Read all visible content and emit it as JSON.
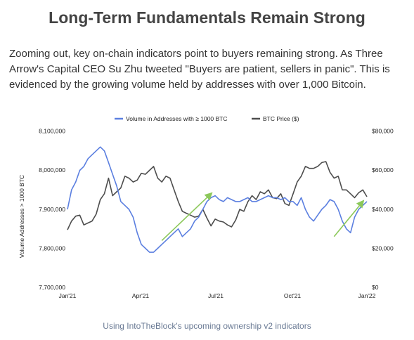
{
  "title": "Long-Term Fundamentals Remain Strong",
  "intro": "Zooming out, key on-chain indicators point to buyers remaining strong. As Three Arrow's Capital CEO Su Zhu tweeted \"Buyers are patient, sellers in panic\". This is evidenced by the growing volume held by addresses with over 1,000 Bitcoin.",
  "caption": "Using IntoTheBlock's upcoming ownership v2 indicators",
  "colors": {
    "volume": "#5b7fe0",
    "price": "#4d4d4d",
    "arrow": "#8cc85a"
  },
  "chart_data": {
    "type": "line",
    "ylabel": "Volume Addresses > 1000 BTC",
    "legend_position": "top-center",
    "x_ticks": [
      "Jan'21",
      "Apr'21",
      "Jul'21",
      "Oct'21",
      "Jan'22"
    ],
    "y_left_ticks": [
      "8,100,000",
      "8,000,000",
      "7,900,000",
      "7,800,000",
      "7,700,000"
    ],
    "y_right_ticks": [
      "$80,000",
      "$60,000",
      "$40,000",
      "$20,000",
      "$0"
    ],
    "ylim_left": [
      7700000,
      8100000
    ],
    "ylim_right": [
      0,
      80000
    ],
    "x_range": [
      "2021-01-01",
      "2022-01-01"
    ],
    "series": [
      {
        "name": "Volume in Addresses with ≥ 1000 BTC",
        "axis": "left",
        "x": [
          "2021-01-01",
          "2021-01-06",
          "2021-01-11",
          "2021-01-16",
          "2021-01-21",
          "2021-01-26",
          "2021-01-31",
          "2021-02-05",
          "2021-02-10",
          "2021-02-15",
          "2021-02-20",
          "2021-02-25",
          "2021-03-02",
          "2021-03-07",
          "2021-03-12",
          "2021-03-17",
          "2021-03-22",
          "2021-03-27",
          "2021-04-01",
          "2021-04-06",
          "2021-04-11",
          "2021-04-16",
          "2021-04-21",
          "2021-04-26",
          "2021-05-01",
          "2021-05-06",
          "2021-05-11",
          "2021-05-16",
          "2021-05-21",
          "2021-05-26",
          "2021-05-31",
          "2021-06-05",
          "2021-06-10",
          "2021-06-15",
          "2021-06-20",
          "2021-06-25",
          "2021-06-30",
          "2021-07-05",
          "2021-07-10",
          "2021-07-15",
          "2021-07-20",
          "2021-07-25",
          "2021-07-30",
          "2021-08-04",
          "2021-08-09",
          "2021-08-14",
          "2021-08-19",
          "2021-08-24",
          "2021-08-29",
          "2021-09-03",
          "2021-09-08",
          "2021-09-13",
          "2021-09-18",
          "2021-09-23",
          "2021-09-28",
          "2021-10-03",
          "2021-10-08",
          "2021-10-13",
          "2021-10-18",
          "2021-10-23",
          "2021-10-28",
          "2021-11-02",
          "2021-11-07",
          "2021-11-12",
          "2021-11-17",
          "2021-11-22",
          "2021-11-27",
          "2021-12-02",
          "2021-12-07",
          "2021-12-12",
          "2021-12-17",
          "2021-12-22",
          "2021-12-27",
          "2022-01-01"
        ],
        "values": [
          7900000,
          7950000,
          7970000,
          8000000,
          8010000,
          8030000,
          8040000,
          8050000,
          8060000,
          8050000,
          8020000,
          7990000,
          7960000,
          7920000,
          7910000,
          7900000,
          7880000,
          7840000,
          7810000,
          7800000,
          7790000,
          7790000,
          7800000,
          7810000,
          7820000,
          7830000,
          7840000,
          7850000,
          7830000,
          7840000,
          7850000,
          7870000,
          7880000,
          7900000,
          7920000,
          7930000,
          7935000,
          7925000,
          7920000,
          7930000,
          7925000,
          7920000,
          7920000,
          7925000,
          7930000,
          7920000,
          7920000,
          7925000,
          7930000,
          7935000,
          7930000,
          7930000,
          7925000,
          7930000,
          7920000,
          7920000,
          7910000,
          7930000,
          7900000,
          7880000,
          7870000,
          7885000,
          7900000,
          7910000,
          7925000,
          7920000,
          7900000,
          7870000,
          7850000,
          7840000,
          7880000,
          7900000,
          7910000,
          7920000
        ]
      },
      {
        "name": "BTC Price ($)",
        "axis": "right",
        "x": [
          "2021-01-01",
          "2021-01-06",
          "2021-01-11",
          "2021-01-16",
          "2021-01-21",
          "2021-01-26",
          "2021-01-31",
          "2021-02-05",
          "2021-02-10",
          "2021-02-15",
          "2021-02-20",
          "2021-02-25",
          "2021-03-02",
          "2021-03-07",
          "2021-03-12",
          "2021-03-17",
          "2021-03-22",
          "2021-03-27",
          "2021-04-01",
          "2021-04-06",
          "2021-04-11",
          "2021-04-16",
          "2021-04-21",
          "2021-04-26",
          "2021-05-01",
          "2021-05-06",
          "2021-05-11",
          "2021-05-16",
          "2021-05-21",
          "2021-05-26",
          "2021-05-31",
          "2021-06-05",
          "2021-06-10",
          "2021-06-15",
          "2021-06-20",
          "2021-06-25",
          "2021-06-30",
          "2021-07-05",
          "2021-07-10",
          "2021-07-15",
          "2021-07-20",
          "2021-07-25",
          "2021-07-30",
          "2021-08-04",
          "2021-08-09",
          "2021-08-14",
          "2021-08-19",
          "2021-08-24",
          "2021-08-29",
          "2021-09-03",
          "2021-09-08",
          "2021-09-13",
          "2021-09-18",
          "2021-09-23",
          "2021-09-28",
          "2021-10-03",
          "2021-10-08",
          "2021-10-13",
          "2021-10-18",
          "2021-10-23",
          "2021-10-28",
          "2021-11-02",
          "2021-11-07",
          "2021-11-12",
          "2021-11-17",
          "2021-11-22",
          "2021-11-27",
          "2021-12-02",
          "2021-12-07",
          "2021-12-12",
          "2021-12-17",
          "2021-12-22",
          "2021-12-27",
          "2022-01-01"
        ],
        "values": [
          29500,
          34000,
          36500,
          37000,
          32000,
          33000,
          34000,
          37500,
          45000,
          48000,
          56000,
          47000,
          49000,
          51000,
          57000,
          56000,
          54000,
          55000,
          58500,
          58000,
          60000,
          62000,
          56000,
          54000,
          57000,
          56000,
          50000,
          44000,
          39000,
          38000,
          37000,
          36000,
          36500,
          40000,
          35500,
          31500,
          35000,
          34000,
          33500,
          32000,
          31000,
          34500,
          40000,
          39000,
          44000,
          47000,
          45000,
          49000,
          48000,
          50000,
          46000,
          45500,
          48000,
          43000,
          42000,
          48000,
          54000,
          57000,
          62000,
          61000,
          61000,
          62000,
          64000,
          64500,
          59000,
          56000,
          57000,
          50000,
          50000,
          48000,
          46000,
          48500,
          50000,
          46500
        ]
      }
    ],
    "annotations": [
      {
        "type": "arrow",
        "from": [
          "2021-04-26",
          7820000
        ],
        "to": [
          "2021-06-25",
          7940000
        ]
      },
      {
        "type": "arrow",
        "from": [
          "2021-11-22",
          7830000
        ],
        "to": [
          "2021-12-27",
          7920000
        ]
      }
    ]
  }
}
